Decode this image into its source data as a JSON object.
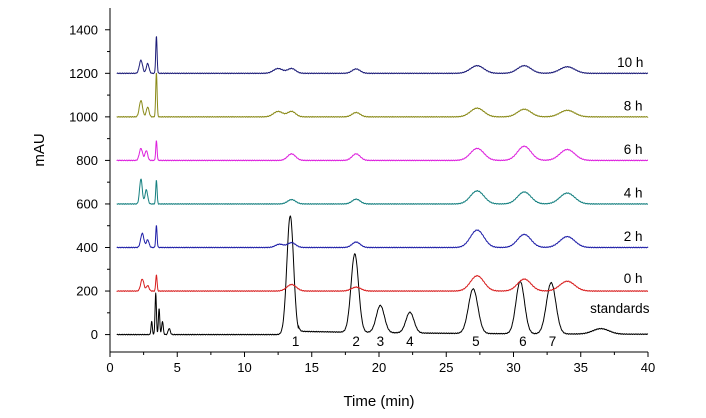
{
  "chart_data": {
    "type": "line",
    "title": "",
    "xlabel": "Time (min)",
    "ylabel": "mAU",
    "xlim": [
      0,
      40
    ],
    "ylim": [
      -80,
      1500
    ],
    "x_ticks": [
      0,
      5,
      10,
      15,
      20,
      25,
      30,
      35,
      40
    ],
    "y_ticks": [
      0,
      200,
      400,
      600,
      800,
      1000,
      1200,
      1400
    ],
    "grid": false,
    "series": [
      {
        "name": "standards",
        "baseline": 0,
        "color": "#000000",
        "label_x": 35.7,
        "label_dy": 100,
        "tail": 15,
        "peaks": [
          [
            3.1,
            60,
            0.05
          ],
          [
            3.4,
            190,
            0.05
          ],
          [
            3.65,
            120,
            0.05
          ],
          [
            3.9,
            60,
            0.06
          ],
          [
            4.4,
            28,
            0.08
          ],
          [
            13.4,
            545,
            0.25
          ],
          [
            18.2,
            360,
            0.28
          ],
          [
            20.1,
            125,
            0.3
          ],
          [
            22.3,
            95,
            0.3
          ],
          [
            27.0,
            205,
            0.35
          ],
          [
            30.5,
            240,
            0.32
          ],
          [
            32.8,
            235,
            0.35
          ],
          [
            36.5,
            25,
            0.6
          ]
        ]
      },
      {
        "name": "0 h",
        "baseline": 200,
        "color": "#d81f1f",
        "label_x": 38.2,
        "label_dy": 36,
        "tail": 0,
        "peaks": [
          [
            2.4,
            55,
            0.12
          ],
          [
            2.8,
            25,
            0.1
          ],
          [
            3.45,
            75,
            0.05
          ],
          [
            13.5,
            30,
            0.35
          ],
          [
            18.3,
            18,
            0.35
          ],
          [
            27.3,
            70,
            0.5
          ],
          [
            30.8,
            55,
            0.5
          ],
          [
            34.0,
            45,
            0.55
          ]
        ]
      },
      {
        "name": "2 h",
        "baseline": 400,
        "color": "#1f1fa8",
        "label_x": 38.2,
        "label_dy": 30,
        "tail": 0,
        "peaks": [
          [
            2.4,
            65,
            0.12
          ],
          [
            2.8,
            35,
            0.1
          ],
          [
            3.45,
            100,
            0.05
          ],
          [
            12.6,
            15,
            0.3
          ],
          [
            13.5,
            22,
            0.3
          ],
          [
            18.3,
            25,
            0.3
          ],
          [
            27.3,
            80,
            0.5
          ],
          [
            30.8,
            60,
            0.5
          ],
          [
            34.0,
            50,
            0.55
          ]
        ]
      },
      {
        "name": "4 h",
        "baseline": 600,
        "color": "#168080",
        "label_x": 38.2,
        "label_dy": 30,
        "tail": 0,
        "peaks": [
          [
            2.3,
            115,
            0.1
          ],
          [
            2.7,
            65,
            0.1
          ],
          [
            3.45,
            110,
            0.05
          ],
          [
            13.5,
            20,
            0.3
          ],
          [
            18.3,
            22,
            0.3
          ],
          [
            27.3,
            60,
            0.5
          ],
          [
            30.8,
            55,
            0.5
          ],
          [
            34.0,
            50,
            0.55
          ]
        ]
      },
      {
        "name": "6 h",
        "baseline": 800,
        "color": "#dd22dd",
        "label_x": 38.2,
        "label_dy": 30,
        "tail": 0,
        "peaks": [
          [
            2.3,
            55,
            0.12
          ],
          [
            2.7,
            45,
            0.1
          ],
          [
            3.45,
            90,
            0.05
          ],
          [
            13.5,
            30,
            0.3
          ],
          [
            18.3,
            30,
            0.3
          ],
          [
            27.3,
            55,
            0.5
          ],
          [
            30.8,
            65,
            0.5
          ],
          [
            34.0,
            50,
            0.55
          ]
        ]
      },
      {
        "name": "8 h",
        "baseline": 1000,
        "color": "#8a8a18",
        "label_x": 38.2,
        "label_dy": 30,
        "tail": 0,
        "peaks": [
          [
            2.3,
            75,
            0.12
          ],
          [
            2.8,
            45,
            0.1
          ],
          [
            3.45,
            205,
            0.05
          ],
          [
            12.5,
            25,
            0.35
          ],
          [
            13.5,
            25,
            0.3
          ],
          [
            18.3,
            20,
            0.3
          ],
          [
            27.3,
            40,
            0.5
          ],
          [
            30.8,
            35,
            0.5
          ],
          [
            34.0,
            30,
            0.55
          ]
        ]
      },
      {
        "name": "10 h",
        "baseline": 1200,
        "color": "#1c1c78",
        "label_x": 37.7,
        "label_dy": 30,
        "tail": 0,
        "peaks": [
          [
            2.3,
            60,
            0.12
          ],
          [
            2.8,
            45,
            0.1
          ],
          [
            3.45,
            170,
            0.05
          ],
          [
            12.5,
            22,
            0.35
          ],
          [
            13.5,
            22,
            0.3
          ],
          [
            18.3,
            20,
            0.3
          ],
          [
            27.3,
            35,
            0.5
          ],
          [
            30.8,
            35,
            0.5
          ],
          [
            34.0,
            30,
            0.55
          ]
        ]
      }
    ],
    "peak_labels": [
      {
        "text": "1",
        "x": 13.8
      },
      {
        "text": "2",
        "x": 18.3
      },
      {
        "text": "3",
        "x": 20.1
      },
      {
        "text": "4",
        "x": 22.3
      },
      {
        "text": "5",
        "x": 27.2
      },
      {
        "text": "6",
        "x": 30.7
      },
      {
        "text": "7",
        "x": 32.9
      }
    ],
    "peak_label_y": -30
  }
}
